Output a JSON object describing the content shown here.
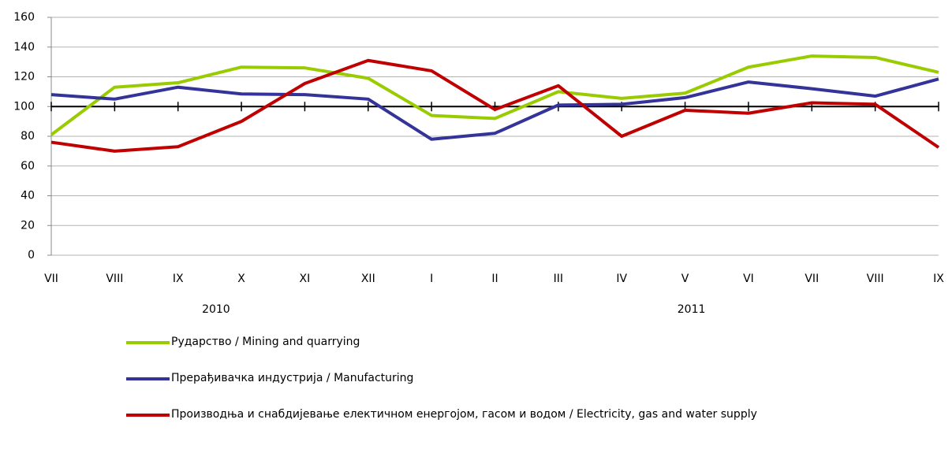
{
  "chart_data": {
    "type": "line",
    "categories": [
      "VII",
      "VIII",
      "IX",
      "X",
      "XI",
      "XII",
      "I",
      "II",
      "III",
      "IV",
      "V",
      "VI",
      "VII",
      "VIII",
      "IX"
    ],
    "year_labels": [
      "2010",
      "2011"
    ],
    "series": [
      {
        "name": "Рударство / Mining and quarrying",
        "color": "#99cc00",
        "values": [
          81,
          113,
          116,
          126.5,
          126,
          119,
          94,
          92,
          110,
          105.5,
          109,
          126.5,
          134,
          133,
          123
        ]
      },
      {
        "name": "Прерађивачка индустрија / Manufacturing",
        "color": "#333399",
        "values": [
          108,
          105,
          113,
          108.5,
          108,
          105,
          78,
          82,
          101,
          101.5,
          106,
          116.5,
          112,
          107,
          118.5
        ]
      },
      {
        "name": "Производња и снабдијевање електичном енергојом, гасом и  водом / Electricity, gas and water supply",
        "color": "#c00000",
        "values": [
          76,
          70,
          73,
          90,
          115.5,
          131,
          124,
          98,
          114,
          80,
          97.5,
          95.5,
          102.5,
          101.5,
          72.5
        ]
      }
    ],
    "reference_line": 100,
    "ylim": [
      0,
      160
    ],
    "yticks": [
      0,
      20,
      40,
      60,
      80,
      100,
      120,
      140,
      160
    ],
    "grid": true
  }
}
